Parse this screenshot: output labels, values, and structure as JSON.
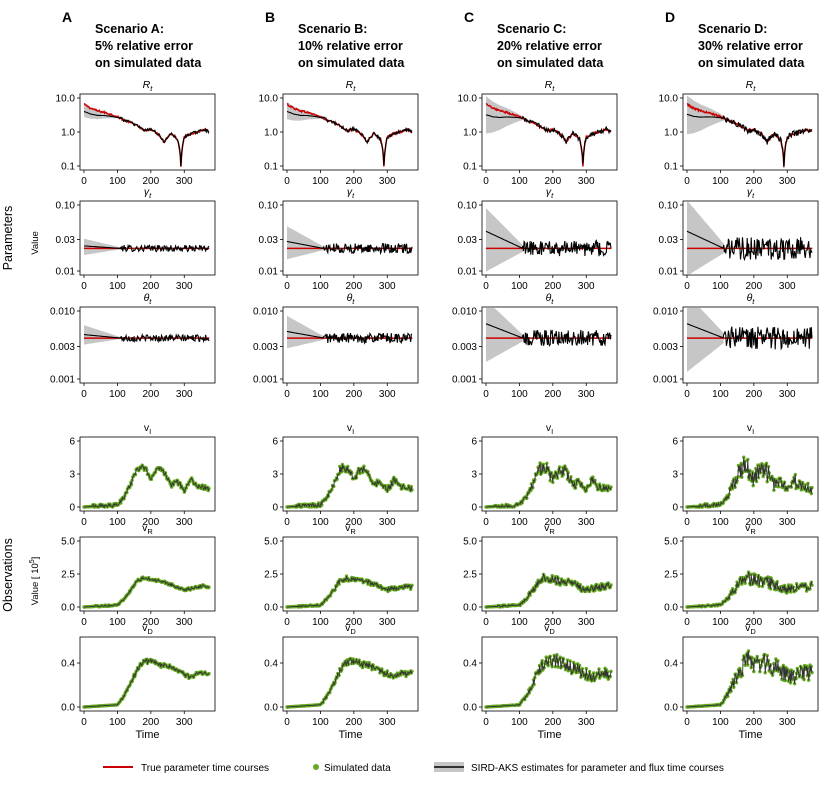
{
  "figure": {
    "panels": [
      {
        "letter": "A",
        "scenario": "Scenario A:",
        "line2": "5% relative error",
        "line3": "on simulated data"
      },
      {
        "letter": "B",
        "scenario": "Scenario B:",
        "line2": "10% relative error",
        "line3": "on simulated data"
      },
      {
        "letter": "C",
        "scenario": "Scenario C:",
        "line2": "20% relative error",
        "line3": "on simulated data"
      },
      {
        "letter": "D",
        "scenario": "Scenario D:",
        "line2": "30% relative error",
        "line3": "on simulated data"
      }
    ],
    "row_group_labels": {
      "parameters": "Parameters",
      "observations": "Observations"
    },
    "ylabel_parameters": "Value",
    "ylabel_observations": "Value [ 10",
    "ylabel_observations_exp": "5",
    "ylabel_observations_close": "]",
    "xlabel": "Time",
    "colors": {
      "true": "#cc0000",
      "simulated": "#66aa22",
      "estimate": "#000000",
      "band": "#c6c6c6",
      "fit_line": "#333333"
    }
  },
  "legend": {
    "true_label": "True parameter time courses",
    "simulated_label": "Simulated data",
    "estimate_label": "SIRD-AKS estimates for parameter and flux time courses"
  },
  "chart_data": [
    {
      "type": "line",
      "title": "R_t",
      "title_main": "R",
      "title_sub": "t",
      "title_style": "script",
      "yscale": "log",
      "ylim": [
        0.1,
        10.0
      ],
      "yticks": [
        "0.1",
        "1.0",
        "10.0"
      ],
      "xlim": [
        0,
        380
      ],
      "xticks": [
        "0",
        "100",
        "200",
        "300"
      ],
      "x": [
        0,
        20,
        40,
        60,
        80,
        100,
        120,
        140,
        160,
        180,
        200,
        220,
        240,
        260,
        280,
        290,
        300,
        320,
        340,
        360,
        380
      ],
      "series": [
        {
          "name": "True parameter time courses",
          "values": [
            6.5,
            5.0,
            4.2,
            3.8,
            3.3,
            2.8,
            2.2,
            1.9,
            1.5,
            1.1,
            1.2,
            0.9,
            0.5,
            0.9,
            0.6,
            0.1,
            0.7,
            0.9,
            1.0,
            1.2,
            0.9
          ]
        }
      ],
      "estimate_start": {
        "A": 4.0,
        "B": 4.0,
        "C": 3.2,
        "D": 3.3
      },
      "band_start": {
        "A": [
          2.8,
          6.0
        ],
        "B": [
          2.5,
          7.0
        ],
        "C": [
          1.0,
          10.0
        ],
        "D": [
          1.0,
          10.0
        ]
      }
    },
    {
      "type": "line",
      "title": "gamma_t",
      "title_main": "γ",
      "title_sub": "t",
      "title_style": "italic",
      "yscale": "log",
      "ylim": [
        0.01,
        0.1
      ],
      "yticks": [
        "0.01",
        "0.03",
        "0.10"
      ],
      "xlim": [
        0,
        380
      ],
      "xticks": [
        "0",
        "100",
        "200",
        "300"
      ],
      "x": [
        0,
        380
      ],
      "series": [
        {
          "name": "True parameter time courses",
          "values": [
            0.022,
            0.022
          ]
        }
      ],
      "estimate_start": {
        "A": 0.024,
        "B": 0.028,
        "C": 0.04,
        "D": 0.04
      },
      "band_start": {
        "A": [
          0.018,
          0.03
        ],
        "B": [
          0.016,
          0.045
        ],
        "C": [
          0.011,
          0.08
        ],
        "D": [
          0.01,
          0.1
        ]
      }
    },
    {
      "type": "line",
      "title": "theta_t",
      "title_main": "θ",
      "title_sub": "t",
      "title_style": "italic",
      "yscale": "log",
      "ylim": [
        0.001,
        0.01
      ],
      "yticks": [
        "0.001",
        "0.003",
        "0.010"
      ],
      "xlim": [
        0,
        380
      ],
      "xticks": [
        "0",
        "100",
        "200",
        "300"
      ],
      "x": [
        0,
        380
      ],
      "series": [
        {
          "name": "True parameter time courses",
          "values": [
            0.004,
            0.004
          ]
        }
      ],
      "estimate_start": {
        "A": 0.0045,
        "B": 0.005,
        "C": 0.0065,
        "D": 0.0065
      },
      "band_start": {
        "A": [
          0.0033,
          0.006
        ],
        "B": [
          0.003,
          0.008
        ],
        "C": [
          0.002,
          0.013
        ],
        "D": [
          0.0015,
          0.015
        ]
      }
    },
    {
      "type": "line",
      "title": "v_I",
      "title_main": "v",
      "title_sub": "I",
      "title_style": "plain",
      "yscale": "linear",
      "ylim": [
        0,
        6
      ],
      "yticks": [
        "0",
        "3",
        "6"
      ],
      "xlim": [
        0,
        380
      ],
      "xticks": [
        "0",
        "100",
        "200",
        "300"
      ],
      "x": [
        0,
        100,
        120,
        140,
        160,
        180,
        200,
        220,
        240,
        260,
        280,
        300,
        320,
        340,
        360,
        370
      ],
      "series": [
        {
          "name": "Simulated data",
          "values": [
            0,
            0.2,
            0.9,
            2.1,
            3.5,
            3.6,
            2.5,
            3.5,
            3.2,
            2.0,
            2.3,
            1.5,
            2.5,
            1.8,
            1.8,
            1.6
          ]
        }
      ]
    },
    {
      "type": "line",
      "title": "v_R",
      "title_main": "v",
      "title_sub": "R",
      "title_style": "plain",
      "yscale": "linear",
      "ylim": [
        0,
        5
      ],
      "yticks": [
        "0.0",
        "2.5",
        "5.0"
      ],
      "xlim": [
        0,
        380
      ],
      "xticks": [
        "0",
        "100",
        "200",
        "300"
      ],
      "x": [
        0,
        100,
        120,
        140,
        160,
        180,
        200,
        220,
        240,
        260,
        280,
        300,
        320,
        340,
        360,
        370
      ],
      "series": [
        {
          "name": "Simulated data",
          "values": [
            0,
            0.15,
            0.6,
            1.3,
            2.0,
            2.2,
            2.1,
            2.0,
            1.9,
            1.7,
            1.5,
            1.3,
            1.4,
            1.5,
            1.6,
            1.5
          ]
        }
      ]
    },
    {
      "type": "line",
      "title": "v_D",
      "title_main": "v",
      "title_sub": "D",
      "title_style": "plain",
      "yscale": "linear",
      "ylim": [
        0,
        0.6
      ],
      "yticks": [
        "0.0",
        "0.4"
      ],
      "xlim": [
        0,
        380
      ],
      "xticks": [
        "0",
        "100",
        "200",
        "300"
      ],
      "x": [
        0,
        100,
        120,
        140,
        160,
        180,
        200,
        220,
        240,
        260,
        280,
        300,
        320,
        340,
        360,
        370
      ],
      "series": [
        {
          "name": "Simulated data",
          "values": [
            0,
            0.02,
            0.1,
            0.22,
            0.34,
            0.42,
            0.42,
            0.39,
            0.38,
            0.36,
            0.33,
            0.3,
            0.27,
            0.31,
            0.31,
            0.3
          ]
        }
      ]
    }
  ]
}
